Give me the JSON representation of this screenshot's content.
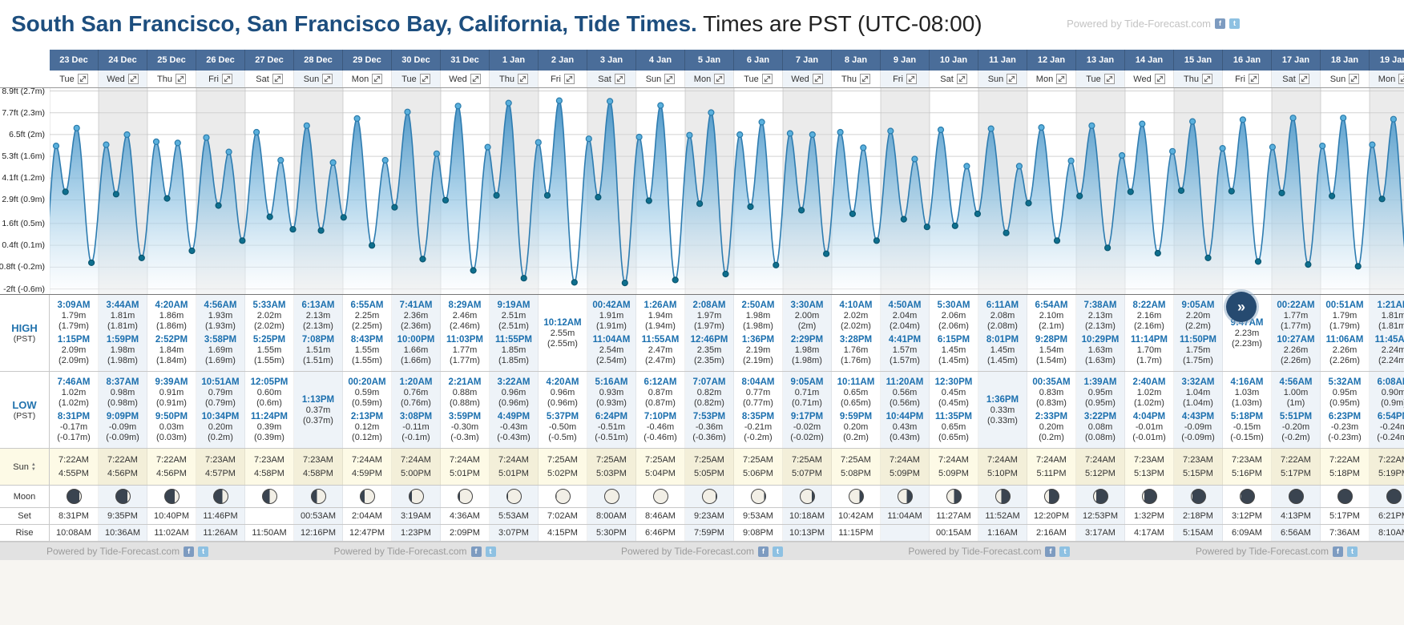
{
  "title": {
    "main": "South San Francisco, San Francisco Bay, California, Tide Times.",
    "suffix": " Times are PST (UTC-08:00)"
  },
  "labels": {
    "high": "HIGH",
    "low": "LOW",
    "pst": "(PST)",
    "sun": "Sun",
    "moon": "Moon",
    "set": "Set",
    "rise": "Rise"
  },
  "icons": {
    "scroll_right": "»",
    "facebook": "f",
    "twitter": "t",
    "expand_day": "diagonal-expand-arrows"
  },
  "colors": {
    "header_bg": "#4a6d99",
    "accent_blue": "#1b6fae",
    "title_blue": "#1d4e7e",
    "chart_fill": "#3f8fc4",
    "sun_row_bg": "#fdfae6"
  },
  "footer": {
    "powered_by": "Powered by Tide-Forecast.com",
    "repeat": 5
  },
  "chart": {
    "type": "area",
    "unit": "meters",
    "axis": [
      {
        "label": "8.9ft (2.7m)",
        "v": 2.713
      },
      {
        "label": "7.7ft (2.3m)",
        "v": 2.347
      },
      {
        "label": "6.5ft (2m)",
        "v": 1.981
      },
      {
        "label": "5.3ft (1.6m)",
        "v": 1.615
      },
      {
        "label": "4.1ft (1.2m)",
        "v": 1.25
      },
      {
        "label": "2.9ft (0.9m)",
        "v": 0.884
      },
      {
        "label": "1.6ft (0.5m)",
        "v": 0.488
      },
      {
        "label": "0.4ft (0.1m)",
        "v": 0.122
      },
      {
        "label": "-0.8ft (-0.2m)",
        "v": -0.244
      },
      {
        "label": "-2ft (-0.6m)",
        "v": -0.61
      }
    ]
  },
  "days": [
    {
      "date": "23 Dec",
      "day": "Tue",
      "high": [
        {
          "time": "3:09AM",
          "m": "1.79m",
          "m2": "(1.79m)"
        },
        {
          "time": "1:15PM",
          "m": "2.09m",
          "m2": "(2.09m)"
        }
      ],
      "low": [
        {
          "time": "7:46AM",
          "m": "1.02m",
          "m2": "(1.02m)"
        },
        {
          "time": "8:31PM",
          "m": "-0.17m",
          "m2": "(-0.17m)"
        }
      ],
      "sun": {
        "rise": "7:22AM",
        "set": "4:55PM"
      },
      "moon": {
        "phase": 0.11,
        "set": "8:31PM",
        "rise": "10:08AM"
      }
    },
    {
      "date": "24 Dec",
      "day": "Wed",
      "high": [
        {
          "time": "3:44AM",
          "m": "1.81m",
          "m2": "(1.81m)"
        },
        {
          "time": "1:59PM",
          "m": "1.98m",
          "m2": "(1.98m)"
        }
      ],
      "low": [
        {
          "time": "8:37AM",
          "m": "0.98m",
          "m2": "(0.98m)"
        },
        {
          "time": "9:09PM",
          "m": "-0.09m",
          "m2": "(-0.09m)"
        }
      ],
      "sun": {
        "rise": "7:22AM",
        "set": "4:56PM"
      },
      "moon": {
        "phase": 0.145,
        "set": "9:35PM",
        "rise": "10:36AM"
      }
    },
    {
      "date": "25 Dec",
      "day": "Thu",
      "high": [
        {
          "time": "4:20AM",
          "m": "1.86m",
          "m2": "(1.86m)"
        },
        {
          "time": "2:52PM",
          "m": "1.84m",
          "m2": "(1.84m)"
        }
      ],
      "low": [
        {
          "time": "9:39AM",
          "m": "0.91m",
          "m2": "(0.91m)"
        },
        {
          "time": "9:50PM",
          "m": "0.03m",
          "m2": "(0.03m)"
        }
      ],
      "sun": {
        "rise": "7:22AM",
        "set": "4:56PM"
      },
      "moon": {
        "phase": 0.18,
        "set": "10:40PM",
        "rise": "11:02AM"
      }
    },
    {
      "date": "26 Dec",
      "day": "Fri",
      "high": [
        {
          "time": "4:56AM",
          "m": "1.93m",
          "m2": "(1.93m)"
        },
        {
          "time": "3:58PM",
          "m": "1.69m",
          "m2": "(1.69m)"
        }
      ],
      "low": [
        {
          "time": "10:51AM",
          "m": "0.79m",
          "m2": "(0.79m)"
        },
        {
          "time": "10:34PM",
          "m": "0.20m",
          "m2": "(0.2m)"
        }
      ],
      "sun": {
        "rise": "7:23AM",
        "set": "4:57PM"
      },
      "moon": {
        "phase": 0.215,
        "set": "11:46PM",
        "rise": "11:26AM"
      }
    },
    {
      "date": "27 Dec",
      "day": "Sat",
      "high": [
        {
          "time": "5:33AM",
          "m": "2.02m",
          "m2": "(2.02m)"
        },
        {
          "time": "5:25PM",
          "m": "1.55m",
          "m2": "(1.55m)"
        }
      ],
      "low": [
        {
          "time": "12:05PM",
          "m": "0.60m",
          "m2": "(0.6m)"
        },
        {
          "time": "11:24PM",
          "m": "0.39m",
          "m2": "(0.39m)"
        }
      ],
      "sun": {
        "rise": "7:23AM",
        "set": "4:58PM"
      },
      "moon": {
        "phase": 0.25,
        "set": "",
        "rise": "11:50AM"
      }
    },
    {
      "date": "28 Dec",
      "day": "Sun",
      "high": [
        {
          "time": "6:13AM",
          "m": "2.13m",
          "m2": "(2.13m)"
        },
        {
          "time": "7:08PM",
          "m": "1.51m",
          "m2": "(1.51m)"
        }
      ],
      "low": [
        {
          "time": "1:13PM",
          "m": "0.37m",
          "m2": "(0.37m)"
        }
      ],
      "sun": {
        "rise": "7:23AM",
        "set": "4:58PM"
      },
      "moon": {
        "phase": 0.285,
        "set": "00:53AM",
        "rise": "12:16PM"
      }
    },
    {
      "date": "29 Dec",
      "day": "Mon",
      "high": [
        {
          "time": "6:55AM",
          "m": "2.25m",
          "m2": "(2.25m)"
        },
        {
          "time": "8:43PM",
          "m": "1.55m",
          "m2": "(1.55m)"
        }
      ],
      "low": [
        {
          "time": "00:20AM",
          "m": "0.59m",
          "m2": "(0.59m)"
        },
        {
          "time": "2:13PM",
          "m": "0.12m",
          "m2": "(0.12m)"
        }
      ],
      "sun": {
        "rise": "7:24AM",
        "set": "4:59PM"
      },
      "moon": {
        "phase": 0.32,
        "set": "2:04AM",
        "rise": "12:47PM"
      }
    },
    {
      "date": "30 Dec",
      "day": "Tue",
      "high": [
        {
          "time": "7:41AM",
          "m": "2.36m",
          "m2": "(2.36m)"
        },
        {
          "time": "10:00PM",
          "m": "1.66m",
          "m2": "(1.66m)"
        }
      ],
      "low": [
        {
          "time": "1:20AM",
          "m": "0.76m",
          "m2": "(0.76m)"
        },
        {
          "time": "3:08PM",
          "m": "-0.11m",
          "m2": "(-0.1m)"
        }
      ],
      "sun": {
        "rise": "7:24AM",
        "set": "5:00PM"
      },
      "moon": {
        "phase": 0.355,
        "set": "3:19AM",
        "rise": "1:23PM"
      }
    },
    {
      "date": "31 Dec",
      "day": "Wed",
      "high": [
        {
          "time": "8:29AM",
          "m": "2.46m",
          "m2": "(2.46m)"
        },
        {
          "time": "11:03PM",
          "m": "1.77m",
          "m2": "(1.77m)"
        }
      ],
      "low": [
        {
          "time": "2:21AM",
          "m": "0.88m",
          "m2": "(0.88m)"
        },
        {
          "time": "3:59PM",
          "m": "-0.30m",
          "m2": "(-0.3m)"
        }
      ],
      "sun": {
        "rise": "7:24AM",
        "set": "5:01PM"
      },
      "moon": {
        "phase": 0.39,
        "set": "4:36AM",
        "rise": "2:09PM"
      }
    },
    {
      "date": "1 Jan",
      "day": "Thu",
      "high": [
        {
          "time": "9:19AM",
          "m": "2.51m",
          "m2": "(2.51m)"
        },
        {
          "time": "11:55PM",
          "m": "1.85m",
          "m2": "(1.85m)"
        }
      ],
      "low": [
        {
          "time": "3:22AM",
          "m": "0.96m",
          "m2": "(0.96m)"
        },
        {
          "time": "4:49PM",
          "m": "-0.43m",
          "m2": "(-0.43m)"
        }
      ],
      "sun": {
        "rise": "7:24AM",
        "set": "5:01PM"
      },
      "moon": {
        "phase": 0.425,
        "set": "5:53AM",
        "rise": "3:07PM"
      }
    },
    {
      "date": "2 Jan",
      "day": "Fri",
      "high": [
        {
          "time": "10:12AM",
          "m": "2.55m",
          "m2": "(2.55m)"
        }
      ],
      "low": [
        {
          "time": "4:20AM",
          "m": "0.96m",
          "m2": "(0.96m)"
        },
        {
          "time": "5:37PM",
          "m": "-0.50m",
          "m2": "(-0.5m)"
        }
      ],
      "sun": {
        "rise": "7:25AM",
        "set": "5:02PM"
      },
      "moon": {
        "phase": 0.46,
        "set": "7:02AM",
        "rise": "4:15PM"
      }
    },
    {
      "date": "3 Jan",
      "day": "Sat",
      "high": [
        {
          "time": "00:42AM",
          "m": "1.91m",
          "m2": "(1.91m)"
        },
        {
          "time": "11:04AM",
          "m": "2.54m",
          "m2": "(2.54m)"
        }
      ],
      "low": [
        {
          "time": "5:16AM",
          "m": "0.93m",
          "m2": "(0.93m)"
        },
        {
          "time": "6:24PM",
          "m": "-0.51m",
          "m2": "(-0.51m)"
        }
      ],
      "sun": {
        "rise": "7:25AM",
        "set": "5:03PM"
      },
      "moon": {
        "phase": 0.5,
        "set": "8:00AM",
        "rise": "5:30PM"
      }
    },
    {
      "date": "4 Jan",
      "day": "Sun",
      "high": [
        {
          "time": "1:26AM",
          "m": "1.94m",
          "m2": "(1.94m)"
        },
        {
          "time": "11:55AM",
          "m": "2.47m",
          "m2": "(2.47m)"
        }
      ],
      "low": [
        {
          "time": "6:12AM",
          "m": "0.87m",
          "m2": "(0.87m)"
        },
        {
          "time": "7:10PM",
          "m": "-0.46m",
          "m2": "(-0.46m)"
        }
      ],
      "sun": {
        "rise": "7:25AM",
        "set": "5:04PM"
      },
      "moon": {
        "phase": 0.535,
        "set": "8:46AM",
        "rise": "6:46PM"
      }
    },
    {
      "date": "5 Jan",
      "day": "Mon",
      "high": [
        {
          "time": "2:08AM",
          "m": "1.97m",
          "m2": "(1.97m)"
        },
        {
          "time": "12:46PM",
          "m": "2.35m",
          "m2": "(2.35m)"
        }
      ],
      "low": [
        {
          "time": "7:07AM",
          "m": "0.82m",
          "m2": "(0.82m)"
        },
        {
          "time": "7:53PM",
          "m": "-0.36m",
          "m2": "(-0.36m)"
        }
      ],
      "sun": {
        "rise": "7:25AM",
        "set": "5:05PM"
      },
      "moon": {
        "phase": 0.57,
        "set": "9:23AM",
        "rise": "7:59PM"
      }
    },
    {
      "date": "6 Jan",
      "day": "Tue",
      "high": [
        {
          "time": "2:50AM",
          "m": "1.98m",
          "m2": "(1.98m)"
        },
        {
          "time": "1:36PM",
          "m": "2.19m",
          "m2": "(2.19m)"
        }
      ],
      "low": [
        {
          "time": "8:04AM",
          "m": "0.77m",
          "m2": "(0.77m)"
        },
        {
          "time": "8:35PM",
          "m": "-0.21m",
          "m2": "(-0.2m)"
        }
      ],
      "sun": {
        "rise": "7:25AM",
        "set": "5:06PM"
      },
      "moon": {
        "phase": 0.605,
        "set": "9:53AM",
        "rise": "9:08PM"
      }
    },
    {
      "date": "7 Jan",
      "day": "Wed",
      "high": [
        {
          "time": "3:30AM",
          "m": "2.00m",
          "m2": "(2m)"
        },
        {
          "time": "2:29PM",
          "m": "1.98m",
          "m2": "(1.98m)"
        }
      ],
      "low": [
        {
          "time": "9:05AM",
          "m": "0.71m",
          "m2": "(0.71m)"
        },
        {
          "time": "9:17PM",
          "m": "-0.02m",
          "m2": "(-0.02m)"
        }
      ],
      "sun": {
        "rise": "7:25AM",
        "set": "5:07PM"
      },
      "moon": {
        "phase": 0.64,
        "set": "10:18AM",
        "rise": "10:13PM"
      }
    },
    {
      "date": "8 Jan",
      "day": "Thu",
      "high": [
        {
          "time": "4:10AM",
          "m": "2.02m",
          "m2": "(2.02m)"
        },
        {
          "time": "3:28PM",
          "m": "1.76m",
          "m2": "(1.76m)"
        }
      ],
      "low": [
        {
          "time": "10:11AM",
          "m": "0.65m",
          "m2": "(0.65m)"
        },
        {
          "time": "9:59PM",
          "m": "0.20m",
          "m2": "(0.2m)"
        }
      ],
      "sun": {
        "rise": "7:25AM",
        "set": "5:08PM"
      },
      "moon": {
        "phase": 0.675,
        "set": "10:42AM",
        "rise": "11:15PM"
      }
    },
    {
      "date": "9 Jan",
      "day": "Fri",
      "high": [
        {
          "time": "4:50AM",
          "m": "2.04m",
          "m2": "(2.04m)"
        },
        {
          "time": "4:41PM",
          "m": "1.57m",
          "m2": "(1.57m)"
        }
      ],
      "low": [
        {
          "time": "11:20AM",
          "m": "0.56m",
          "m2": "(0.56m)"
        },
        {
          "time": "10:44PM",
          "m": "0.43m",
          "m2": "(0.43m)"
        }
      ],
      "sun": {
        "rise": "7:24AM",
        "set": "5:09PM"
      },
      "moon": {
        "phase": 0.71,
        "set": "11:04AM",
        "rise": ""
      }
    },
    {
      "date": "10 Jan",
      "day": "Sat",
      "high": [
        {
          "time": "5:30AM",
          "m": "2.06m",
          "m2": "(2.06m)"
        },
        {
          "time": "6:15PM",
          "m": "1.45m",
          "m2": "(1.45m)"
        }
      ],
      "low": [
        {
          "time": "12:30PM",
          "m": "0.45m",
          "m2": "(0.45m)"
        },
        {
          "time": "11:35PM",
          "m": "0.65m",
          "m2": "(0.65m)"
        }
      ],
      "sun": {
        "rise": "7:24AM",
        "set": "5:09PM"
      },
      "moon": {
        "phase": 0.75,
        "set": "11:27AM",
        "rise": "00:15AM"
      }
    },
    {
      "date": "11 Jan",
      "day": "Sun",
      "high": [
        {
          "time": "6:11AM",
          "m": "2.08m",
          "m2": "(2.08m)"
        },
        {
          "time": "8:01PM",
          "m": "1.45m",
          "m2": "(1.45m)"
        }
      ],
      "low": [
        {
          "time": "1:36PM",
          "m": "0.33m",
          "m2": "(0.33m)"
        }
      ],
      "sun": {
        "rise": "7:24AM",
        "set": "5:10PM"
      },
      "moon": {
        "phase": 0.785,
        "set": "11:52AM",
        "rise": "1:16AM"
      }
    },
    {
      "date": "12 Jan",
      "day": "Mon",
      "high": [
        {
          "time": "6:54AM",
          "m": "2.10m",
          "m2": "(2.1m)"
        },
        {
          "time": "9:28PM",
          "m": "1.54m",
          "m2": "(1.54m)"
        }
      ],
      "low": [
        {
          "time": "00:35AM",
          "m": "0.83m",
          "m2": "(0.83m)"
        },
        {
          "time": "2:33PM",
          "m": "0.20m",
          "m2": "(0.2m)"
        }
      ],
      "sun": {
        "rise": "7:24AM",
        "set": "5:11PM"
      },
      "moon": {
        "phase": 0.82,
        "set": "12:20PM",
        "rise": "2:16AM"
      }
    },
    {
      "date": "13 Jan",
      "day": "Tue",
      "high": [
        {
          "time": "7:38AM",
          "m": "2.13m",
          "m2": "(2.13m)"
        },
        {
          "time": "10:29PM",
          "m": "1.63m",
          "m2": "(1.63m)"
        }
      ],
      "low": [
        {
          "time": "1:39AM",
          "m": "0.95m",
          "m2": "(0.95m)"
        },
        {
          "time": "3:22PM",
          "m": "0.08m",
          "m2": "(0.08m)"
        }
      ],
      "sun": {
        "rise": "7:24AM",
        "set": "5:12PM"
      },
      "moon": {
        "phase": 0.855,
        "set": "12:53PM",
        "rise": "3:17AM"
      }
    },
    {
      "date": "14 Jan",
      "day": "Wed",
      "high": [
        {
          "time": "8:22AM",
          "m": "2.16m",
          "m2": "(2.16m)"
        },
        {
          "time": "11:14PM",
          "m": "1.70m",
          "m2": "(1.7m)"
        }
      ],
      "low": [
        {
          "time": "2:40AM",
          "m": "1.02m",
          "m2": "(1.02m)"
        },
        {
          "time": "4:04PM",
          "m": "-0.01m",
          "m2": "(-0.01m)"
        }
      ],
      "sun": {
        "rise": "7:23AM",
        "set": "5:13PM"
      },
      "moon": {
        "phase": 0.89,
        "set": "1:32PM",
        "rise": "4:17AM"
      }
    },
    {
      "date": "15 Jan",
      "day": "Thu",
      "high": [
        {
          "time": "9:05AM",
          "m": "2.20m",
          "m2": "(2.2m)"
        },
        {
          "time": "11:50PM",
          "m": "1.75m",
          "m2": "(1.75m)"
        }
      ],
      "low": [
        {
          "time": "3:32AM",
          "m": "1.04m",
          "m2": "(1.04m)"
        },
        {
          "time": "4:43PM",
          "m": "-0.09m",
          "m2": "(-0.09m)"
        }
      ],
      "sun": {
        "rise": "7:23AM",
        "set": "5:15PM"
      },
      "moon": {
        "phase": 0.92,
        "set": "2:18PM",
        "rise": "5:15AM"
      }
    },
    {
      "date": "16 Jan",
      "day": "Fri",
      "high": [
        {
          "time": "9:47AM",
          "m": "2.23m",
          "m2": "(2.23m)"
        }
      ],
      "low": [
        {
          "time": "4:16AM",
          "m": "1.03m",
          "m2": "(1.03m)"
        },
        {
          "time": "5:18PM",
          "m": "-0.15m",
          "m2": "(-0.15m)"
        }
      ],
      "sun": {
        "rise": "7:23AM",
        "set": "5:16PM"
      },
      "moon": {
        "phase": 0.945,
        "set": "3:12PM",
        "rise": "6:09AM"
      }
    },
    {
      "date": "17 Jan",
      "day": "Sat",
      "high": [
        {
          "time": "00:22AM",
          "m": "1.77m",
          "m2": "(1.77m)"
        },
        {
          "time": "10:27AM",
          "m": "2.26m",
          "m2": "(2.26m)"
        }
      ],
      "low": [
        {
          "time": "4:56AM",
          "m": "1.00m",
          "m2": "(1m)"
        },
        {
          "time": "5:51PM",
          "m": "-0.20m",
          "m2": "(-0.2m)"
        }
      ],
      "sun": {
        "rise": "7:22AM",
        "set": "5:17PM"
      },
      "moon": {
        "phase": 0.97,
        "set": "4:13PM",
        "rise": "6:56AM"
      }
    },
    {
      "date": "18 Jan",
      "day": "Sun",
      "high": [
        {
          "time": "00:51AM",
          "m": "1.79m",
          "m2": "(1.79m)"
        },
        {
          "time": "11:06AM",
          "m": "2.26m",
          "m2": "(2.26m)"
        }
      ],
      "low": [
        {
          "time": "5:32AM",
          "m": "0.95m",
          "m2": "(0.95m)"
        },
        {
          "time": "6:23PM",
          "m": "-0.23m",
          "m2": "(-0.23m)"
        }
      ],
      "sun": {
        "rise": "7:22AM",
        "set": "5:18PM"
      },
      "moon": {
        "phase": 0.995,
        "set": "5:17PM",
        "rise": "7:36AM"
      }
    },
    {
      "date": "19 Jan",
      "day": "Mon",
      "high": [
        {
          "time": "1:21AM",
          "m": "1.81m",
          "m2": "(1.81m)"
        },
        {
          "time": "11:45AM",
          "m": "2.24m",
          "m2": "(2.24m)"
        }
      ],
      "low": [
        {
          "time": "6:08AM",
          "m": "0.90m",
          "m2": "(0.9m)"
        },
        {
          "time": "6:54PM",
          "m": "-0.24m",
          "m2": "(-0.24m)"
        }
      ],
      "sun": {
        "rise": "7:22AM",
        "set": "5:19PM"
      },
      "moon": {
        "phase": 0.03,
        "set": "6:21PM",
        "rise": "8:10AM"
      }
    }
  ]
}
